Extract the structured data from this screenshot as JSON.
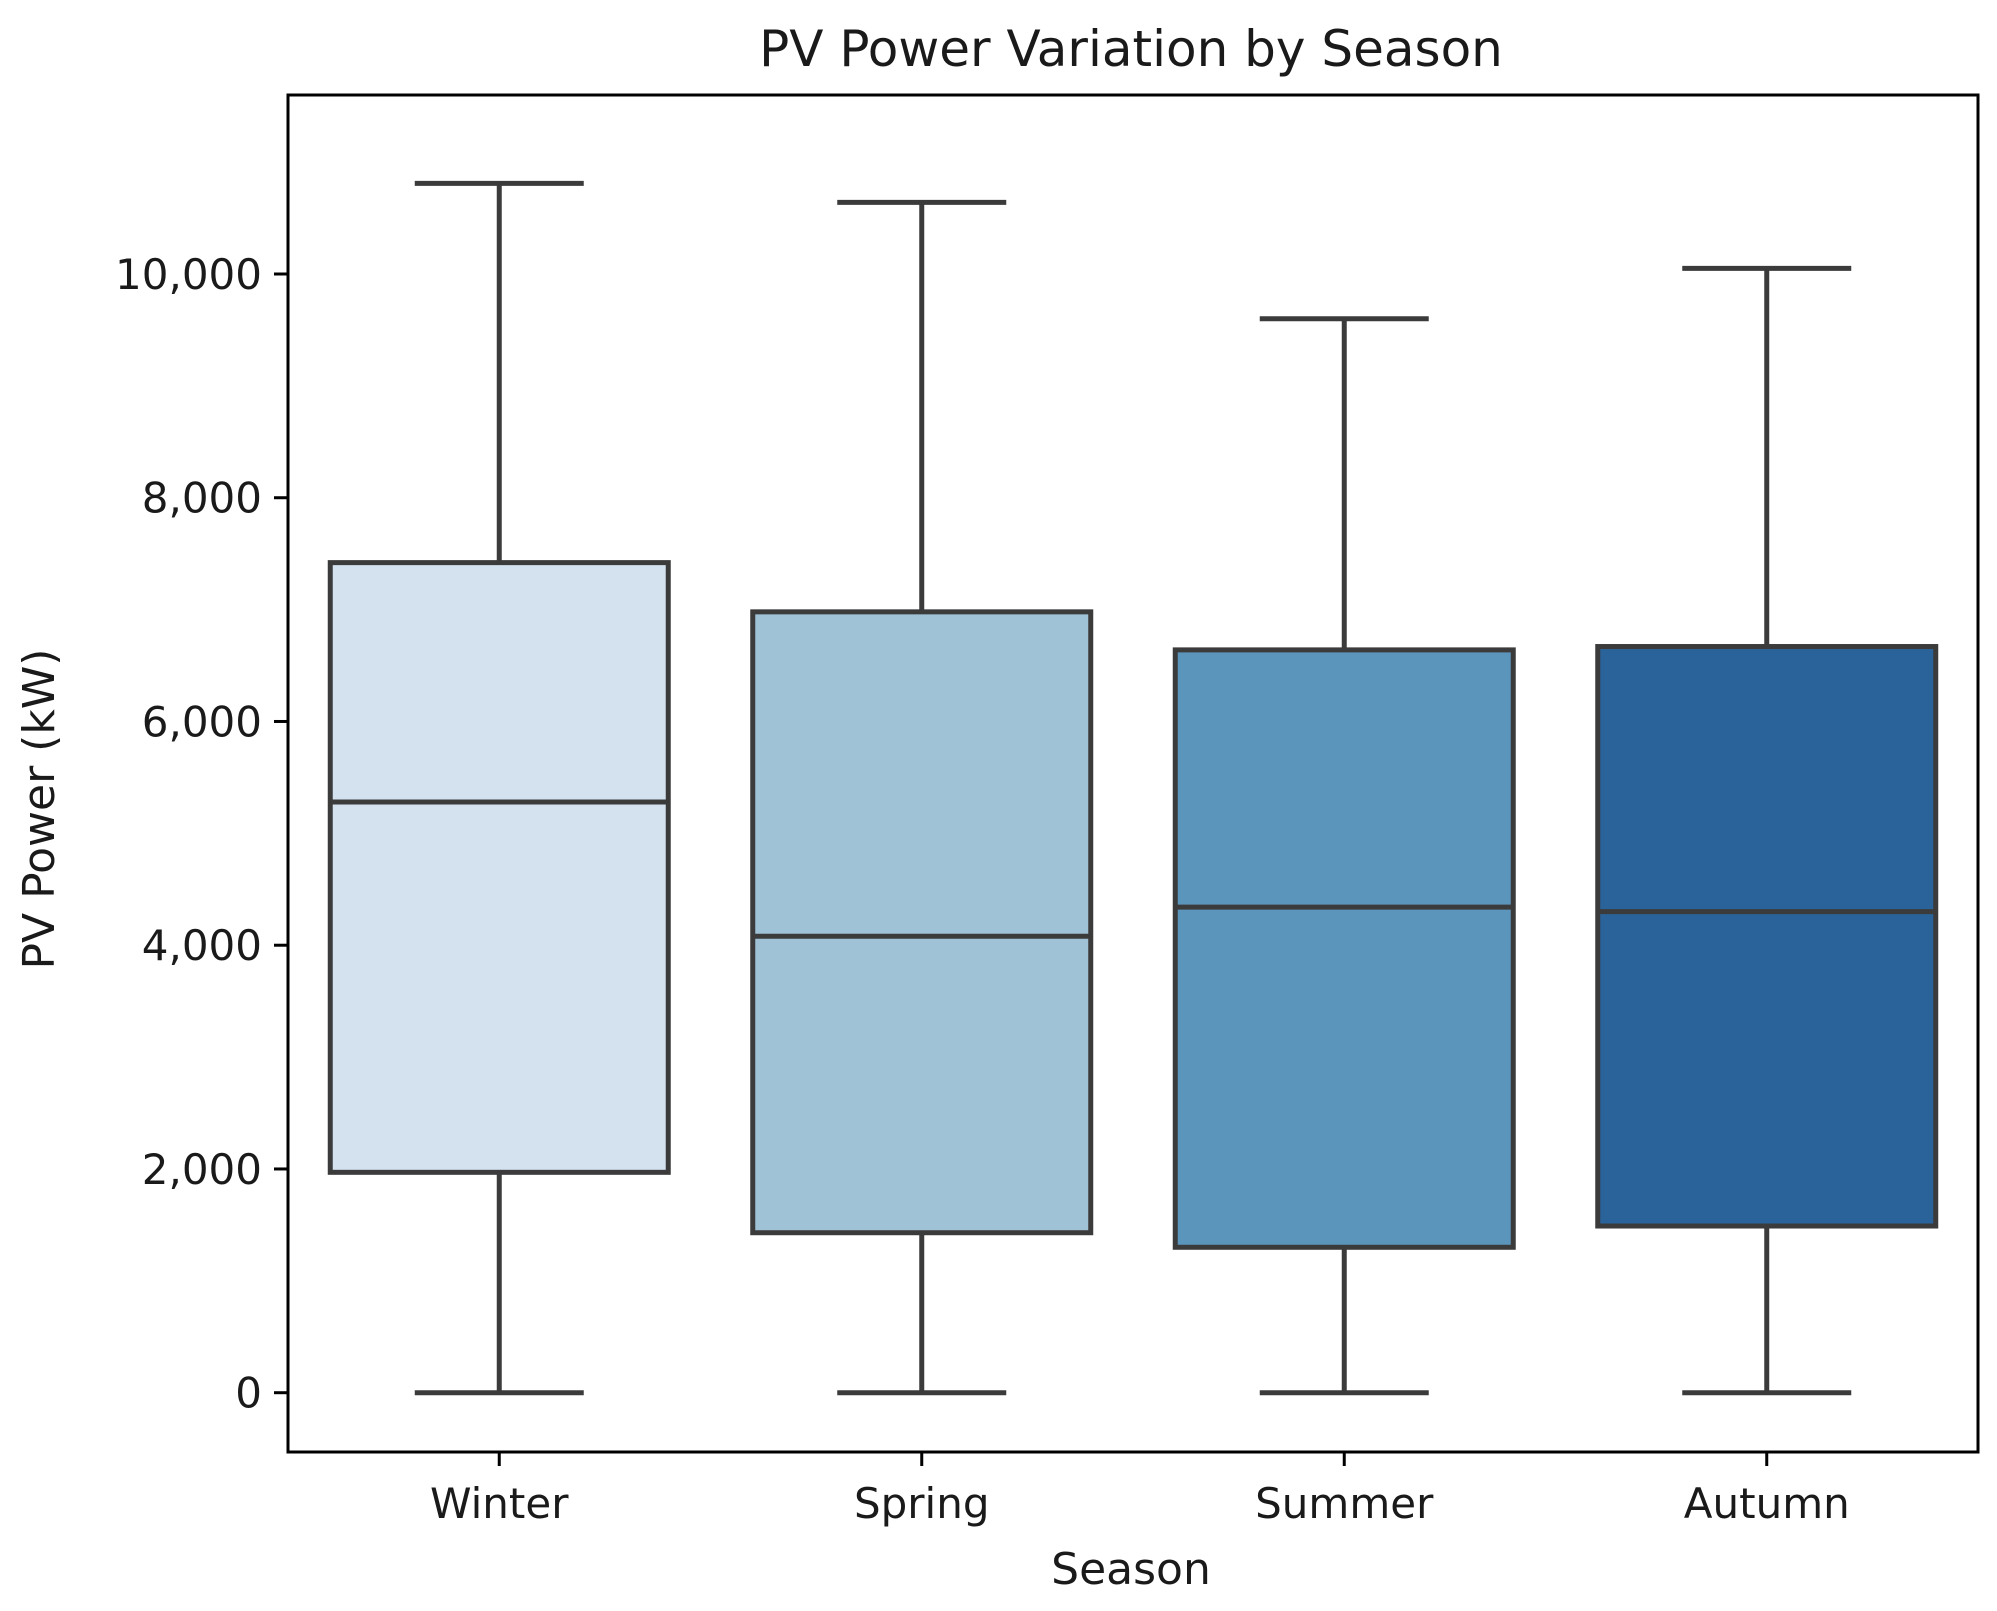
{
  "chart_data": {
    "type": "box",
    "title": "PV Power Variation by Season",
    "xlabel": "Season",
    "ylabel": "PV Power (kW)",
    "ylim": [
      -530,
      11600
    ],
    "yticks": [
      0,
      2000,
      4000,
      6000,
      8000,
      10000
    ],
    "ytick_labels": [
      "0",
      "2,000",
      "4,000",
      "6,000",
      "8,000",
      "10,000"
    ],
    "categories": [
      "Winter",
      "Spring",
      "Summer",
      "Autumn"
    ],
    "boxes": [
      {
        "name": "Winter",
        "whisker_low": 0,
        "q1": 1970,
        "median": 5280,
        "q3": 7420,
        "whisker_high": 10810,
        "color": "#d4e2ef"
      },
      {
        "name": "Spring",
        "whisker_low": 0,
        "q1": 1430,
        "median": 4080,
        "q3": 6980,
        "whisker_high": 10640,
        "color": "#9fc2d6"
      },
      {
        "name": "Summer",
        "whisker_low": 0,
        "q1": 1300,
        "median": 4340,
        "q3": 6640,
        "whisker_high": 9600,
        "color": "#5c95bb"
      },
      {
        "name": "Autumn",
        "whisker_low": 0,
        "q1": 1490,
        "median": 4300,
        "q3": 6670,
        "whisker_high": 10050,
        "color": "#2a6399"
      }
    ],
    "line_color": "#3b3b3b",
    "grid": false,
    "legend": "none"
  }
}
